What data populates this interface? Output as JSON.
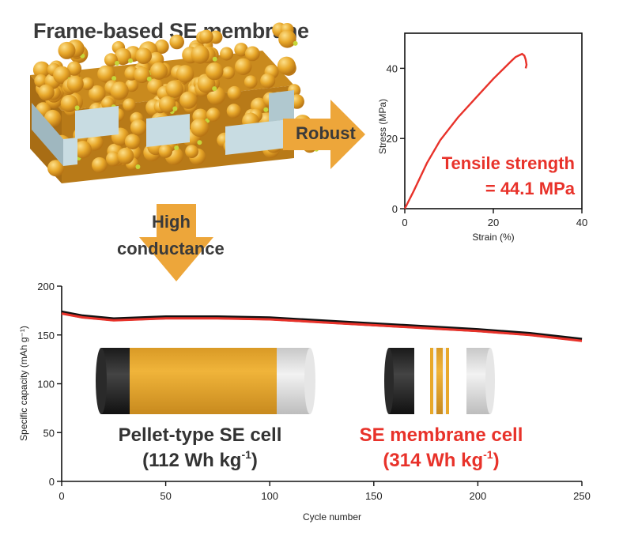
{
  "header": {
    "title": "Frame-based SE membrane",
    "arrow_robust": "Robust",
    "arrow_high": "High",
    "arrow_conductance": "conductance"
  },
  "colors": {
    "gold": "#e8a82a",
    "red": "#e8322a",
    "black": "#111111",
    "frame": "#c8dce2"
  },
  "chart_data": [
    {
      "type": "line",
      "xlabel": "Strain (%)",
      "ylabel": "Stress (MPa)",
      "xlim": [
        0,
        40
      ],
      "ylim": [
        0,
        50
      ],
      "xticks": [
        "0",
        "20",
        "40"
      ],
      "yticks": [
        "0",
        "20",
        "40"
      ],
      "series": [
        {
          "x": [
            0,
            2,
            5,
            8,
            12,
            16,
            20,
            22,
            24,
            25,
            26,
            26.5,
            27,
            27.3,
            27.5,
            27.3
          ],
          "values": [
            0,
            5,
            13,
            19.5,
            26,
            31.5,
            37,
            39.5,
            42,
            43.2,
            43.8,
            44.1,
            43.6,
            42.5,
            41,
            40
          ],
          "color": "#e8322a"
        }
      ],
      "annotation": {
        "line1": "Tensile strength",
        "line2": "= 44.1 MPa"
      }
    },
    {
      "type": "line",
      "xlabel": "Cycle number",
      "ylabel": "Specific capacity (mAh g⁻¹)",
      "xlim": [
        0,
        250
      ],
      "ylim": [
        0,
        200
      ],
      "xticks": [
        "0",
        "50",
        "100",
        "150",
        "200",
        "250"
      ],
      "yticks": [
        "0",
        "50",
        "100",
        "150",
        "200"
      ],
      "series": [
        {
          "x": [
            0,
            10,
            25,
            50,
            75,
            100,
            125,
            150,
            175,
            200,
            225,
            250
          ],
          "values": [
            172,
            168,
            165,
            167,
            167,
            166,
            163,
            160,
            157,
            154,
            150,
            144
          ],
          "color": "#e8322a"
        },
        {
          "x": [
            0,
            10,
            25,
            50,
            75,
            100,
            125,
            150,
            175,
            200,
            225,
            250
          ],
          "values": [
            173,
            169,
            166,
            168,
            168,
            167,
            164,
            161,
            158,
            155,
            151,
            145
          ],
          "color": "#111111"
        }
      ],
      "labels": {
        "pellet_name": "Pellet-type SE cell",
        "pellet_energy": "(112 Wh kg",
        "pellet_sup": "-1",
        "pellet_close": ")",
        "membrane_name": "SE membrane cell",
        "membrane_energy": "(314 Wh kg",
        "membrane_sup": "-1",
        "membrane_close": ")"
      }
    }
  ]
}
